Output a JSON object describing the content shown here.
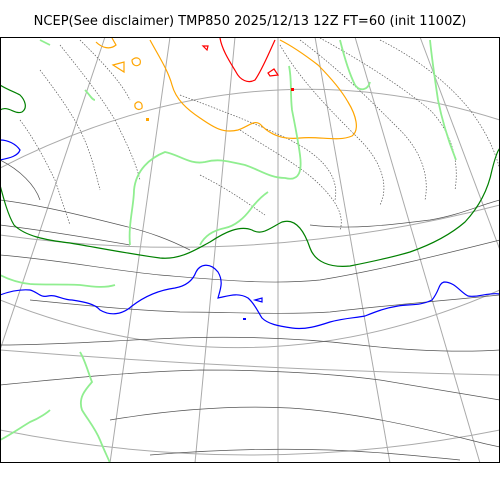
{
  "title": "NCEP(See disclaimer) TMP850 2025/12/13 12Z FT=60 (init 1100Z)",
  "colors": {
    "background": "#ffffff",
    "frame": "#000000",
    "graticule": "#aaaaaa",
    "minor_isotherm": "#555555",
    "red_isotherm": "#ff0000",
    "orange_isotherm": "#ffa500",
    "green_isotherm": "#008000",
    "blue_isotherm": "#0000ff",
    "light_green_contour": "#90ee90"
  }
}
